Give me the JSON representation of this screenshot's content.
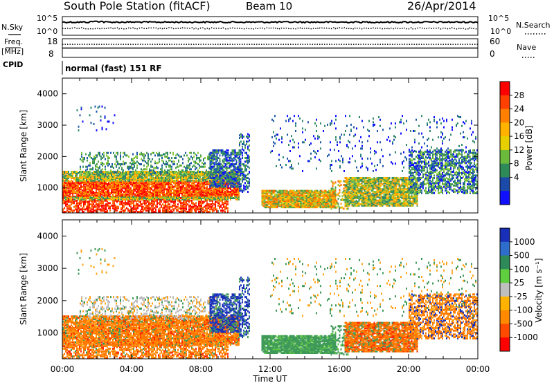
{
  "header": {
    "station": "South Pole Station (fitACF)",
    "beam": "Beam 10",
    "date": "26/Apr/2014"
  },
  "left_labels": {
    "nsky": "N.Sky",
    "freq": "Freq.",
    "freq_unit": "[MHz]",
    "cpid": "CPID"
  },
  "right_labels": {
    "nsearch": "N.Search",
    "nave": "Nave"
  },
  "cpid_text": "normal (fast) 151 RF",
  "chart_data": [
    {
      "type": "line",
      "panel": "noise",
      "series": [
        {
          "name": "N.Sky",
          "style": "solid"
        },
        {
          "name": "N.Search",
          "style": "dotted"
        }
      ],
      "ytick_labels": [
        "10^5",
        "10^0"
      ],
      "right_tick_labels": [
        "10^5",
        "10^0"
      ]
    },
    {
      "type": "line",
      "panel": "frequency",
      "series": [
        {
          "name": "Freq.",
          "style": "solid",
          "x": [
            0,
            24
          ],
          "y": [
            13,
            13
          ]
        },
        {
          "name": "Nave",
          "style": "dotted",
          "x": [
            0,
            24
          ],
          "y": [
            42,
            42
          ]
        }
      ],
      "ylim": [
        8,
        18
      ],
      "yticks": [
        "18",
        "8"
      ],
      "y2lim": [
        0,
        60
      ],
      "y2ticks": [
        "60",
        "0"
      ]
    },
    {
      "type": "heatmap",
      "panel": "power",
      "ylabel": "Slant Range [km]",
      "xlim": [
        0,
        24
      ],
      "ylim": [
        200,
        4500
      ],
      "yticks": [
        "1000",
        "2000",
        "3000",
        "4000"
      ],
      "colorbar_label": "Power [dB]",
      "colorbar_ticks": [
        "28",
        "24",
        "20",
        "16",
        "12",
        "8",
        "4"
      ],
      "colorbar_colors": [
        "#ff0000",
        "#ff4000",
        "#ff7f00",
        "#ffb300",
        "#e8d000",
        "#6cba3c",
        "#2f8a5a",
        "#1c4aa8",
        "#1010ff"
      ]
    },
    {
      "type": "heatmap",
      "panel": "velocity",
      "ylabel": "Slant Range [km]",
      "xlabel": "Time UT",
      "xlim": [
        0,
        24
      ],
      "ylim": [
        200,
        4500
      ],
      "xticks": [
        "00:00",
        "04:00",
        "08:00",
        "12:00",
        "16:00",
        "20:00",
        "00:00"
      ],
      "yticks": [
        "1000",
        "2000",
        "3000",
        "4000"
      ],
      "colorbar_label": "Velocity [m s⁻¹]",
      "colorbar_ticks": [
        "1000",
        "500",
        "100",
        "25",
        "-25",
        "-100",
        "-500",
        "-1000"
      ],
      "colorbar_colors": [
        "#1a2fb8",
        "#2e6dcc",
        "#2f8a5a",
        "#5fcf40",
        "#bfbfbf",
        "#ffb300",
        "#ff8a00",
        "#ff4a00",
        "#ff0000"
      ]
    }
  ]
}
